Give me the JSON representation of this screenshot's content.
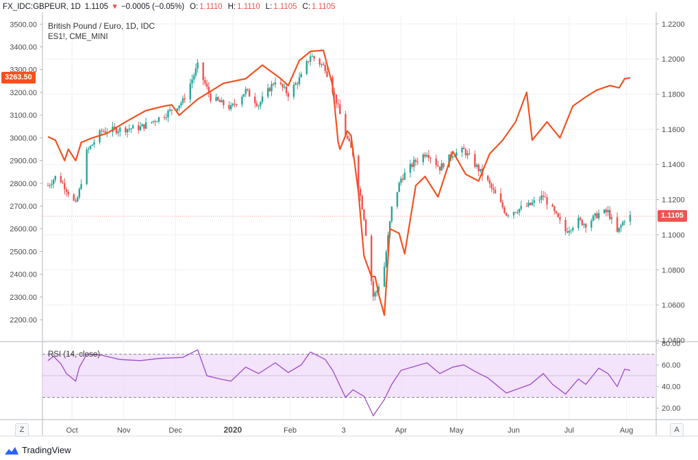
{
  "header": {
    "symbol": "FX_IDC:GBPEUR, 1D",
    "last": "1.1105",
    "change": "−0.0005 (−0.05%)",
    "o_label": "O:",
    "o": "1.1110",
    "h_label": "H:",
    "h": "1.1110",
    "l_label": "L:",
    "l": "1.1105",
    "c_label": "C:",
    "c": "1.1105"
  },
  "legend": {
    "main": "British Pound / Euro, 1D, IDC",
    "overlay": "ES1!, CME_MINI",
    "rsi": "RSI (14, close)"
  },
  "badges": {
    "es_last": "3263.50",
    "gbpeur_last": "1.1105"
  },
  "brand": {
    "name": "TradingView"
  },
  "corners": {
    "left": "Z",
    "right": "A"
  },
  "colors": {
    "up": "#26a69a",
    "down": "#ef5350",
    "es_line": "#f4511e",
    "rsi_line": "#9c4bc6",
    "rsi_band": "#f0dcfa"
  },
  "chart_data": [
    {
      "type": "candlestick",
      "name": "British Pound / Euro, 1D, IDC",
      "axis": "right",
      "ylim": [
        1.04,
        1.225
      ],
      "yticks": [
        "1.0400",
        "1.0600",
        "1.0800",
        "1.1000",
        "1.1200",
        "1.1400",
        "1.1600",
        "1.1800",
        "1.2000",
        "1.2200"
      ],
      "xticks": [
        "Oct",
        "Nov",
        "Dec",
        "2020",
        "Feb",
        "3",
        "Apr",
        "May",
        "Jun",
        "Jul",
        "Aug"
      ],
      "x_range": [
        "2019-09-23",
        "2020-08-03"
      ],
      "anchors": [
        [
          "2019-09-23",
          1.128
        ],
        [
          "2019-09-28",
          1.134
        ],
        [
          "2019-10-03",
          1.126
        ],
        [
          "2019-10-08",
          1.117
        ],
        [
          "2019-10-10",
          1.125
        ],
        [
          "2019-10-14",
          1.147
        ],
        [
          "2019-10-22",
          1.159
        ],
        [
          "2019-11-01",
          1.16
        ],
        [
          "2019-11-12",
          1.161
        ],
        [
          "2019-11-25",
          1.168
        ],
        [
          "2019-12-05",
          1.176
        ],
        [
          "2019-12-13",
          1.196
        ],
        [
          "2019-12-20",
          1.178
        ],
        [
          "2019-12-31",
          1.172
        ],
        [
          "2020-01-08",
          1.182
        ],
        [
          "2020-01-15",
          1.174
        ],
        [
          "2020-01-24",
          1.188
        ],
        [
          "2020-01-31",
          1.18
        ],
        [
          "2020-02-07",
          1.19
        ],
        [
          "2020-02-12",
          1.202
        ],
        [
          "2020-02-20",
          1.195
        ],
        [
          "2020-02-26",
          1.176
        ],
        [
          "2020-03-02",
          1.157
        ],
        [
          "2020-03-06",
          1.146
        ],
        [
          "2020-03-12",
          1.11
        ],
        [
          "2020-03-17",
          1.065
        ],
        [
          "2020-03-19",
          1.068
        ],
        [
          "2020-03-23",
          1.082
        ],
        [
          "2020-03-27",
          1.115
        ],
        [
          "2020-04-01",
          1.132
        ],
        [
          "2020-04-08",
          1.141
        ],
        [
          "2020-04-15",
          1.147
        ],
        [
          "2020-04-22",
          1.138
        ],
        [
          "2020-04-29",
          1.146
        ],
        [
          "2020-05-05",
          1.148
        ],
        [
          "2020-05-11",
          1.14
        ],
        [
          "2020-05-18",
          1.13
        ],
        [
          "2020-05-28",
          1.112
        ],
        [
          "2020-06-10",
          1.117
        ],
        [
          "2020-06-17",
          1.122
        ],
        [
          "2020-06-22",
          1.114
        ],
        [
          "2020-06-29",
          1.102
        ],
        [
          "2020-07-06",
          1.108
        ],
        [
          "2020-07-10",
          1.106
        ],
        [
          "2020-07-17",
          1.112
        ],
        [
          "2020-07-22",
          1.113
        ],
        [
          "2020-07-27",
          1.101
        ],
        [
          "2020-07-31",
          1.109
        ],
        [
          "2020-08-03",
          1.1105
        ]
      ],
      "last": {
        "open": 1.111,
        "high": 1.111,
        "low": 1.1105,
        "close": 1.1105
      }
    },
    {
      "type": "line",
      "name": "ES1!, CME_MINI",
      "axis": "left",
      "ylim": [
        2110,
        3540
      ],
      "yticks": [
        "2200.00",
        "2300.00",
        "2400.00",
        "2500.00",
        "2600.00",
        "2700.00",
        "2800.00",
        "2900.00",
        "3000.00",
        "3100.00",
        "3200.00",
        "3300.00",
        "3400.00",
        "3500.00"
      ],
      "points": [
        [
          "2019-09-23",
          3005
        ],
        [
          "2019-09-27",
          2990
        ],
        [
          "2019-10-02",
          2900
        ],
        [
          "2019-10-04",
          2950
        ],
        [
          "2019-10-08",
          2900
        ],
        [
          "2019-10-11",
          2980
        ],
        [
          "2019-10-17",
          3000
        ],
        [
          "2019-10-25",
          3020
        ],
        [
          "2019-11-04",
          3070
        ],
        [
          "2019-11-15",
          3120
        ],
        [
          "2019-11-25",
          3140
        ],
        [
          "2019-11-29",
          3145
        ],
        [
          "2019-12-03",
          3100
        ],
        [
          "2019-12-13",
          3170
        ],
        [
          "2019-12-27",
          3240
        ],
        [
          "2020-01-08",
          3260
        ],
        [
          "2020-01-17",
          3320
        ],
        [
          "2020-01-27",
          3260
        ],
        [
          "2020-01-31",
          3230
        ],
        [
          "2020-02-06",
          3340
        ],
        [
          "2020-02-12",
          3380
        ],
        [
          "2020-02-19",
          3385
        ],
        [
          "2020-02-24",
          3230
        ],
        [
          "2020-02-27",
          2980
        ],
        [
          "2020-02-28",
          2950
        ],
        [
          "2020-03-03",
          3030
        ],
        [
          "2020-03-05",
          3010
        ],
        [
          "2020-03-09",
          2760
        ],
        [
          "2020-03-12",
          2480
        ],
        [
          "2020-03-16",
          2390
        ],
        [
          "2020-03-18",
          2390
        ],
        [
          "2020-03-20",
          2310
        ],
        [
          "2020-03-23",
          2220
        ],
        [
          "2020-03-26",
          2600
        ],
        [
          "2020-03-31",
          2580
        ],
        [
          "2020-04-03",
          2490
        ],
        [
          "2020-04-09",
          2790
        ],
        [
          "2020-04-14",
          2830
        ],
        [
          "2020-04-21",
          2740
        ],
        [
          "2020-04-29",
          2940
        ],
        [
          "2020-05-06",
          2840
        ],
        [
          "2020-05-13",
          2810
        ],
        [
          "2020-05-19",
          2930
        ],
        [
          "2020-05-26",
          2990
        ],
        [
          "2020-06-02",
          3070
        ],
        [
          "2020-06-08",
          3200
        ],
        [
          "2020-06-11",
          2990
        ],
        [
          "2020-06-19",
          3070
        ],
        [
          "2020-06-26",
          3000
        ],
        [
          "2020-07-03",
          3140
        ],
        [
          "2020-07-10",
          3180
        ],
        [
          "2020-07-16",
          3210
        ],
        [
          "2020-07-23",
          3230
        ],
        [
          "2020-07-28",
          3220
        ],
        [
          "2020-07-31",
          3260
        ],
        [
          "2020-08-03",
          3263.5
        ]
      ],
      "last": 3263.5
    },
    {
      "type": "line",
      "name": "RSI (14, close)",
      "ylim": [
        10,
        81
      ],
      "yticks": [
        "20.00",
        "40.00",
        "60.00",
        "80.00"
      ],
      "band": [
        30,
        70
      ],
      "midline": 50,
      "points": [
        [
          "2019-09-23",
          64
        ],
        [
          "2019-09-26",
          68
        ],
        [
          "2019-09-30",
          61
        ],
        [
          "2019-10-03",
          52
        ],
        [
          "2019-10-08",
          45
        ],
        [
          "2019-10-10",
          58
        ],
        [
          "2019-10-14",
          70
        ],
        [
          "2019-10-22",
          69
        ],
        [
          "2019-11-01",
          65
        ],
        [
          "2019-11-12",
          64
        ],
        [
          "2019-11-22",
          66
        ],
        [
          "2019-12-05",
          67
        ],
        [
          "2019-12-13",
          74
        ],
        [
          "2019-12-18",
          50
        ],
        [
          "2019-12-25",
          47
        ],
        [
          "2019-12-31",
          45
        ],
        [
          "2020-01-08",
          58
        ],
        [
          "2020-01-15",
          52
        ],
        [
          "2020-01-24",
          62
        ],
        [
          "2020-01-31",
          53
        ],
        [
          "2020-02-07",
          60
        ],
        [
          "2020-02-12",
          72
        ],
        [
          "2020-02-20",
          65
        ],
        [
          "2020-02-24",
          55
        ],
        [
          "2020-03-02",
          30
        ],
        [
          "2020-03-06",
          37
        ],
        [
          "2020-03-12",
          31
        ],
        [
          "2020-03-17",
          13
        ],
        [
          "2020-03-23",
          28
        ],
        [
          "2020-03-27",
          42
        ],
        [
          "2020-04-01",
          55
        ],
        [
          "2020-04-15",
          62
        ],
        [
          "2020-04-22",
          52
        ],
        [
          "2020-04-29",
          58
        ],
        [
          "2020-05-05",
          60
        ],
        [
          "2020-05-11",
          54
        ],
        [
          "2020-05-18",
          48
        ],
        [
          "2020-05-28",
          34
        ],
        [
          "2020-06-10",
          42
        ],
        [
          "2020-06-17",
          52
        ],
        [
          "2020-06-22",
          42
        ],
        [
          "2020-06-29",
          33
        ],
        [
          "2020-07-06",
          47
        ],
        [
          "2020-07-10",
          42
        ],
        [
          "2020-07-17",
          57
        ],
        [
          "2020-07-22",
          52
        ],
        [
          "2020-07-27",
          40
        ],
        [
          "2020-07-31",
          56
        ],
        [
          "2020-08-03",
          55
        ]
      ]
    }
  ]
}
